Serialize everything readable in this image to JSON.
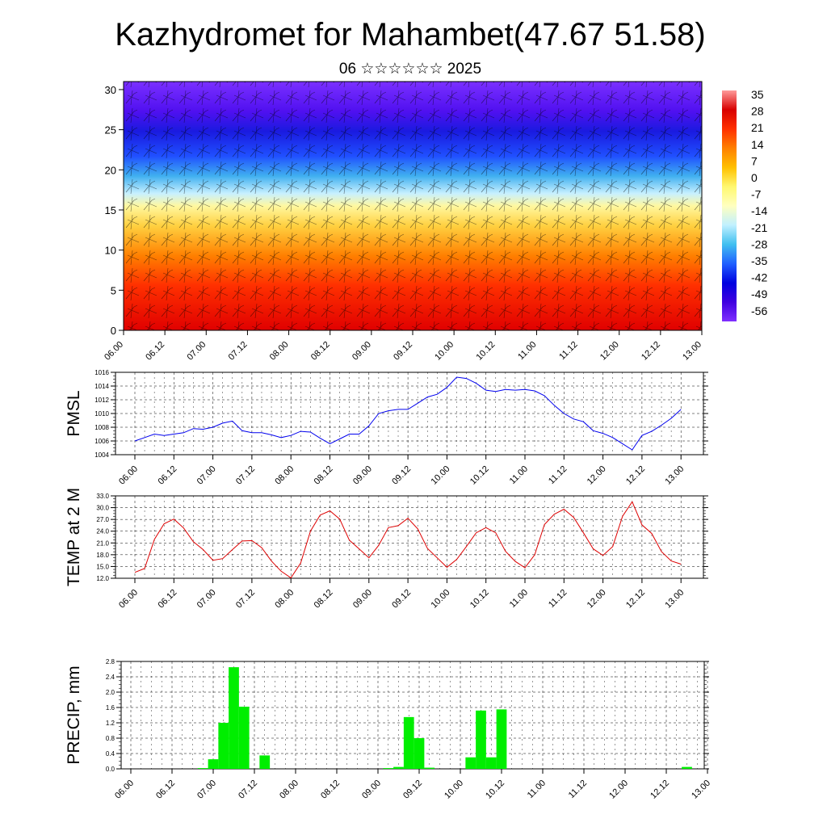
{
  "header": {
    "title": "Kazhydromet for Mahambet(47.67 51.58)",
    "subtitle": "06 ☆☆☆☆☆☆ 2025"
  },
  "colors": {
    "pmsl_line": "#0000ee",
    "temp_line": "#dd0000",
    "precip_bar": "#00ee00",
    "colorbar_stops": [
      "#ff9a9a",
      "#d80000",
      "#ff3000",
      "#ff8000",
      "#ffc000",
      "#fff870",
      "#ffffc0",
      "#c0f0ff",
      "#40c0f0",
      "#2060ff",
      "#0000e0",
      "#4000e0",
      "#8030ff"
    ]
  },
  "chart_data": [
    {
      "type": "heatmap",
      "name": "cross-section",
      "x_ticks": [
        "06.00",
        "06.12",
        "07.00",
        "07.12",
        "08.00",
        "08.12",
        "09.00",
        "09.12",
        "10.00",
        "10.12",
        "11.00",
        "11.12",
        "12.00",
        "12.12",
        "13.00"
      ],
      "y_ticks": [
        "0",
        "5",
        "10",
        "15",
        "20",
        "25",
        "30"
      ],
      "ylim": [
        0,
        31
      ],
      "colorbar_labels": [
        "35",
        "28",
        "21",
        "14",
        "7",
        "0",
        "-7",
        "-14",
        "-21",
        "-28",
        "-35",
        "-42",
        "-49",
        "-56"
      ],
      "grid": false
    },
    {
      "type": "line",
      "name": "pmsl",
      "ylabel": "PMSL",
      "ylim": [
        1004,
        1016
      ],
      "y_ticks": [
        "1004",
        "1006",
        "1008",
        "1010",
        "1012",
        "1014",
        "1016"
      ],
      "x_ticks": [
        "06.00",
        "06.12",
        "07.00",
        "07.12",
        "08.00",
        "08.12",
        "09.00",
        "09.12",
        "10.00",
        "10.12",
        "11.00",
        "11.12",
        "12.00",
        "12.12",
        "13.00"
      ],
      "values": [
        1006.0,
        1006.5,
        1007.0,
        1006.8,
        1007.0,
        1007.2,
        1007.8,
        1007.7,
        1008.0,
        1008.6,
        1008.9,
        1007.5,
        1007.2,
        1007.2,
        1006.9,
        1006.5,
        1006.8,
        1007.4,
        1007.3,
        1006.4,
        1005.6,
        1006.3,
        1007.0,
        1007.0,
        1008.2,
        1010.0,
        1010.4,
        1010.6,
        1010.6,
        1011.5,
        1012.4,
        1012.8,
        1013.8,
        1015.3,
        1015.1,
        1014.4,
        1013.4,
        1013.2,
        1013.5,
        1013.4,
        1013.5,
        1013.3,
        1012.6,
        1011.2,
        1010.0,
        1009.2,
        1008.8,
        1007.5,
        1007.1,
        1006.5,
        1005.6,
        1004.7,
        1006.8,
        1007.4,
        1008.3,
        1009.3,
        1010.6
      ],
      "grid": true
    },
    {
      "type": "line",
      "name": "temperature",
      "ylabel": "TEMP at 2 M",
      "ylim": [
        12,
        33
      ],
      "y_ticks": [
        "12.0",
        "15.0",
        "18.0",
        "21.0",
        "24.0",
        "27.0",
        "30.0",
        "33.0"
      ],
      "x_ticks": [
        "06.00",
        "06.12",
        "07.00",
        "07.12",
        "08.00",
        "08.12",
        "09.00",
        "09.12",
        "10.00",
        "10.12",
        "11.00",
        "11.12",
        "12.00",
        "12.12",
        "13.00"
      ],
      "values": [
        13.5,
        14.5,
        21.9,
        25.9,
        27.1,
        24.8,
        21.3,
        19.3,
        16.6,
        17.0,
        19.3,
        21.5,
        21.6,
        19.8,
        16.4,
        13.8,
        12.1,
        15.9,
        24.0,
        28.1,
        29.2,
        27.1,
        21.7,
        19.5,
        17.2,
        20.4,
        24.9,
        25.4,
        27.3,
        24.6,
        19.6,
        17.2,
        14.8,
        16.8,
        20.1,
        23.6,
        24.9,
        23.6,
        18.9,
        16.3,
        14.7,
        18.0,
        25.7,
        28.3,
        29.6,
        27.5,
        23.6,
        19.5,
        17.8,
        20.1,
        27.8,
        31.5,
        25.6,
        23.4,
        18.8,
        16.4,
        15.6
      ],
      "grid": true
    },
    {
      "type": "bar",
      "name": "precipitation",
      "ylabel": "PRECIP, mm",
      "ylim": [
        0,
        2.8
      ],
      "y_ticks": [
        "0.0",
        "0.4",
        "0.8",
        "1.2",
        "1.6",
        "2.0",
        "2.4",
        "2.8"
      ],
      "x_ticks": [
        "06.00",
        "06.12",
        "07.00",
        "07.12",
        "08.00",
        "08.12",
        "09.00",
        "09.12",
        "10.00",
        "10.12",
        "11.00",
        "11.12",
        "12.00",
        "12.12",
        "13.00"
      ],
      "values": [
        0,
        0,
        0,
        0,
        0,
        0,
        0,
        0.02,
        0.25,
        1.2,
        2.65,
        1.62,
        0,
        0.35,
        0,
        0,
        0,
        0,
        0,
        0,
        0,
        0,
        0,
        0,
        0,
        0.02,
        0.05,
        1.35,
        0.8,
        0.03,
        0,
        0,
        0,
        0.3,
        1.52,
        0.3,
        1.55,
        0,
        0,
        0,
        0,
        0,
        0,
        0,
        0,
        0,
        0,
        0,
        0,
        0,
        0,
        0,
        0,
        0,
        0.05,
        0
      ],
      "grid": true
    }
  ]
}
